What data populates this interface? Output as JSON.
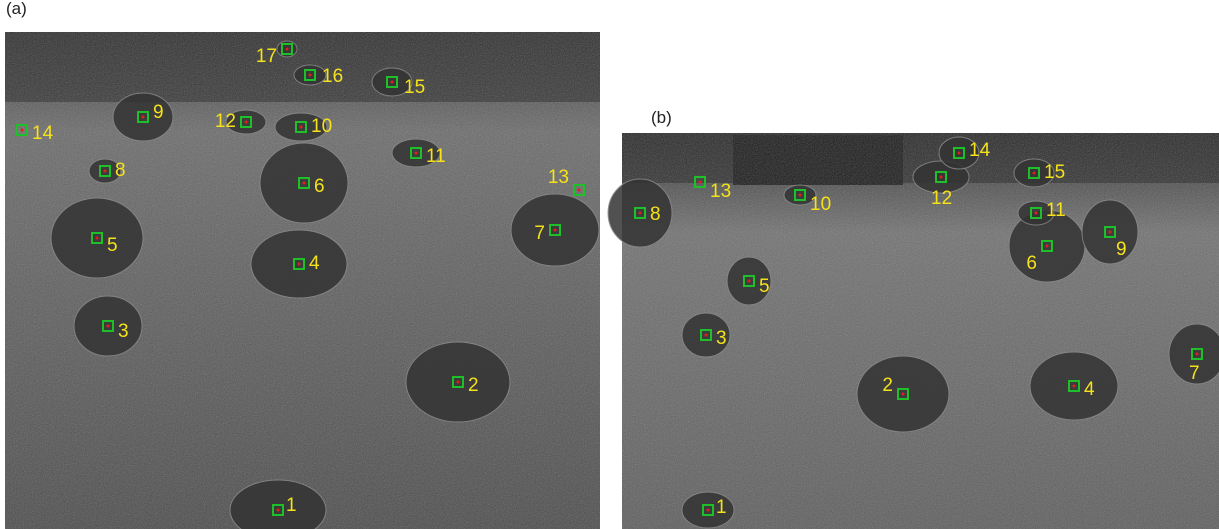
{
  "panels": [
    {
      "label": "(a)",
      "markers": [
        "1",
        "2",
        "3",
        "4",
        "5",
        "6",
        "7",
        "8",
        "9",
        "10",
        "11",
        "12",
        "13",
        "14",
        "15",
        "16",
        "17"
      ]
    },
    {
      "label": "(b)",
      "markers": [
        "1",
        "2",
        "3",
        "4",
        "5",
        "6",
        "7",
        "8",
        "9",
        "10",
        "11",
        "12",
        "13",
        "14",
        "15"
      ]
    }
  ]
}
